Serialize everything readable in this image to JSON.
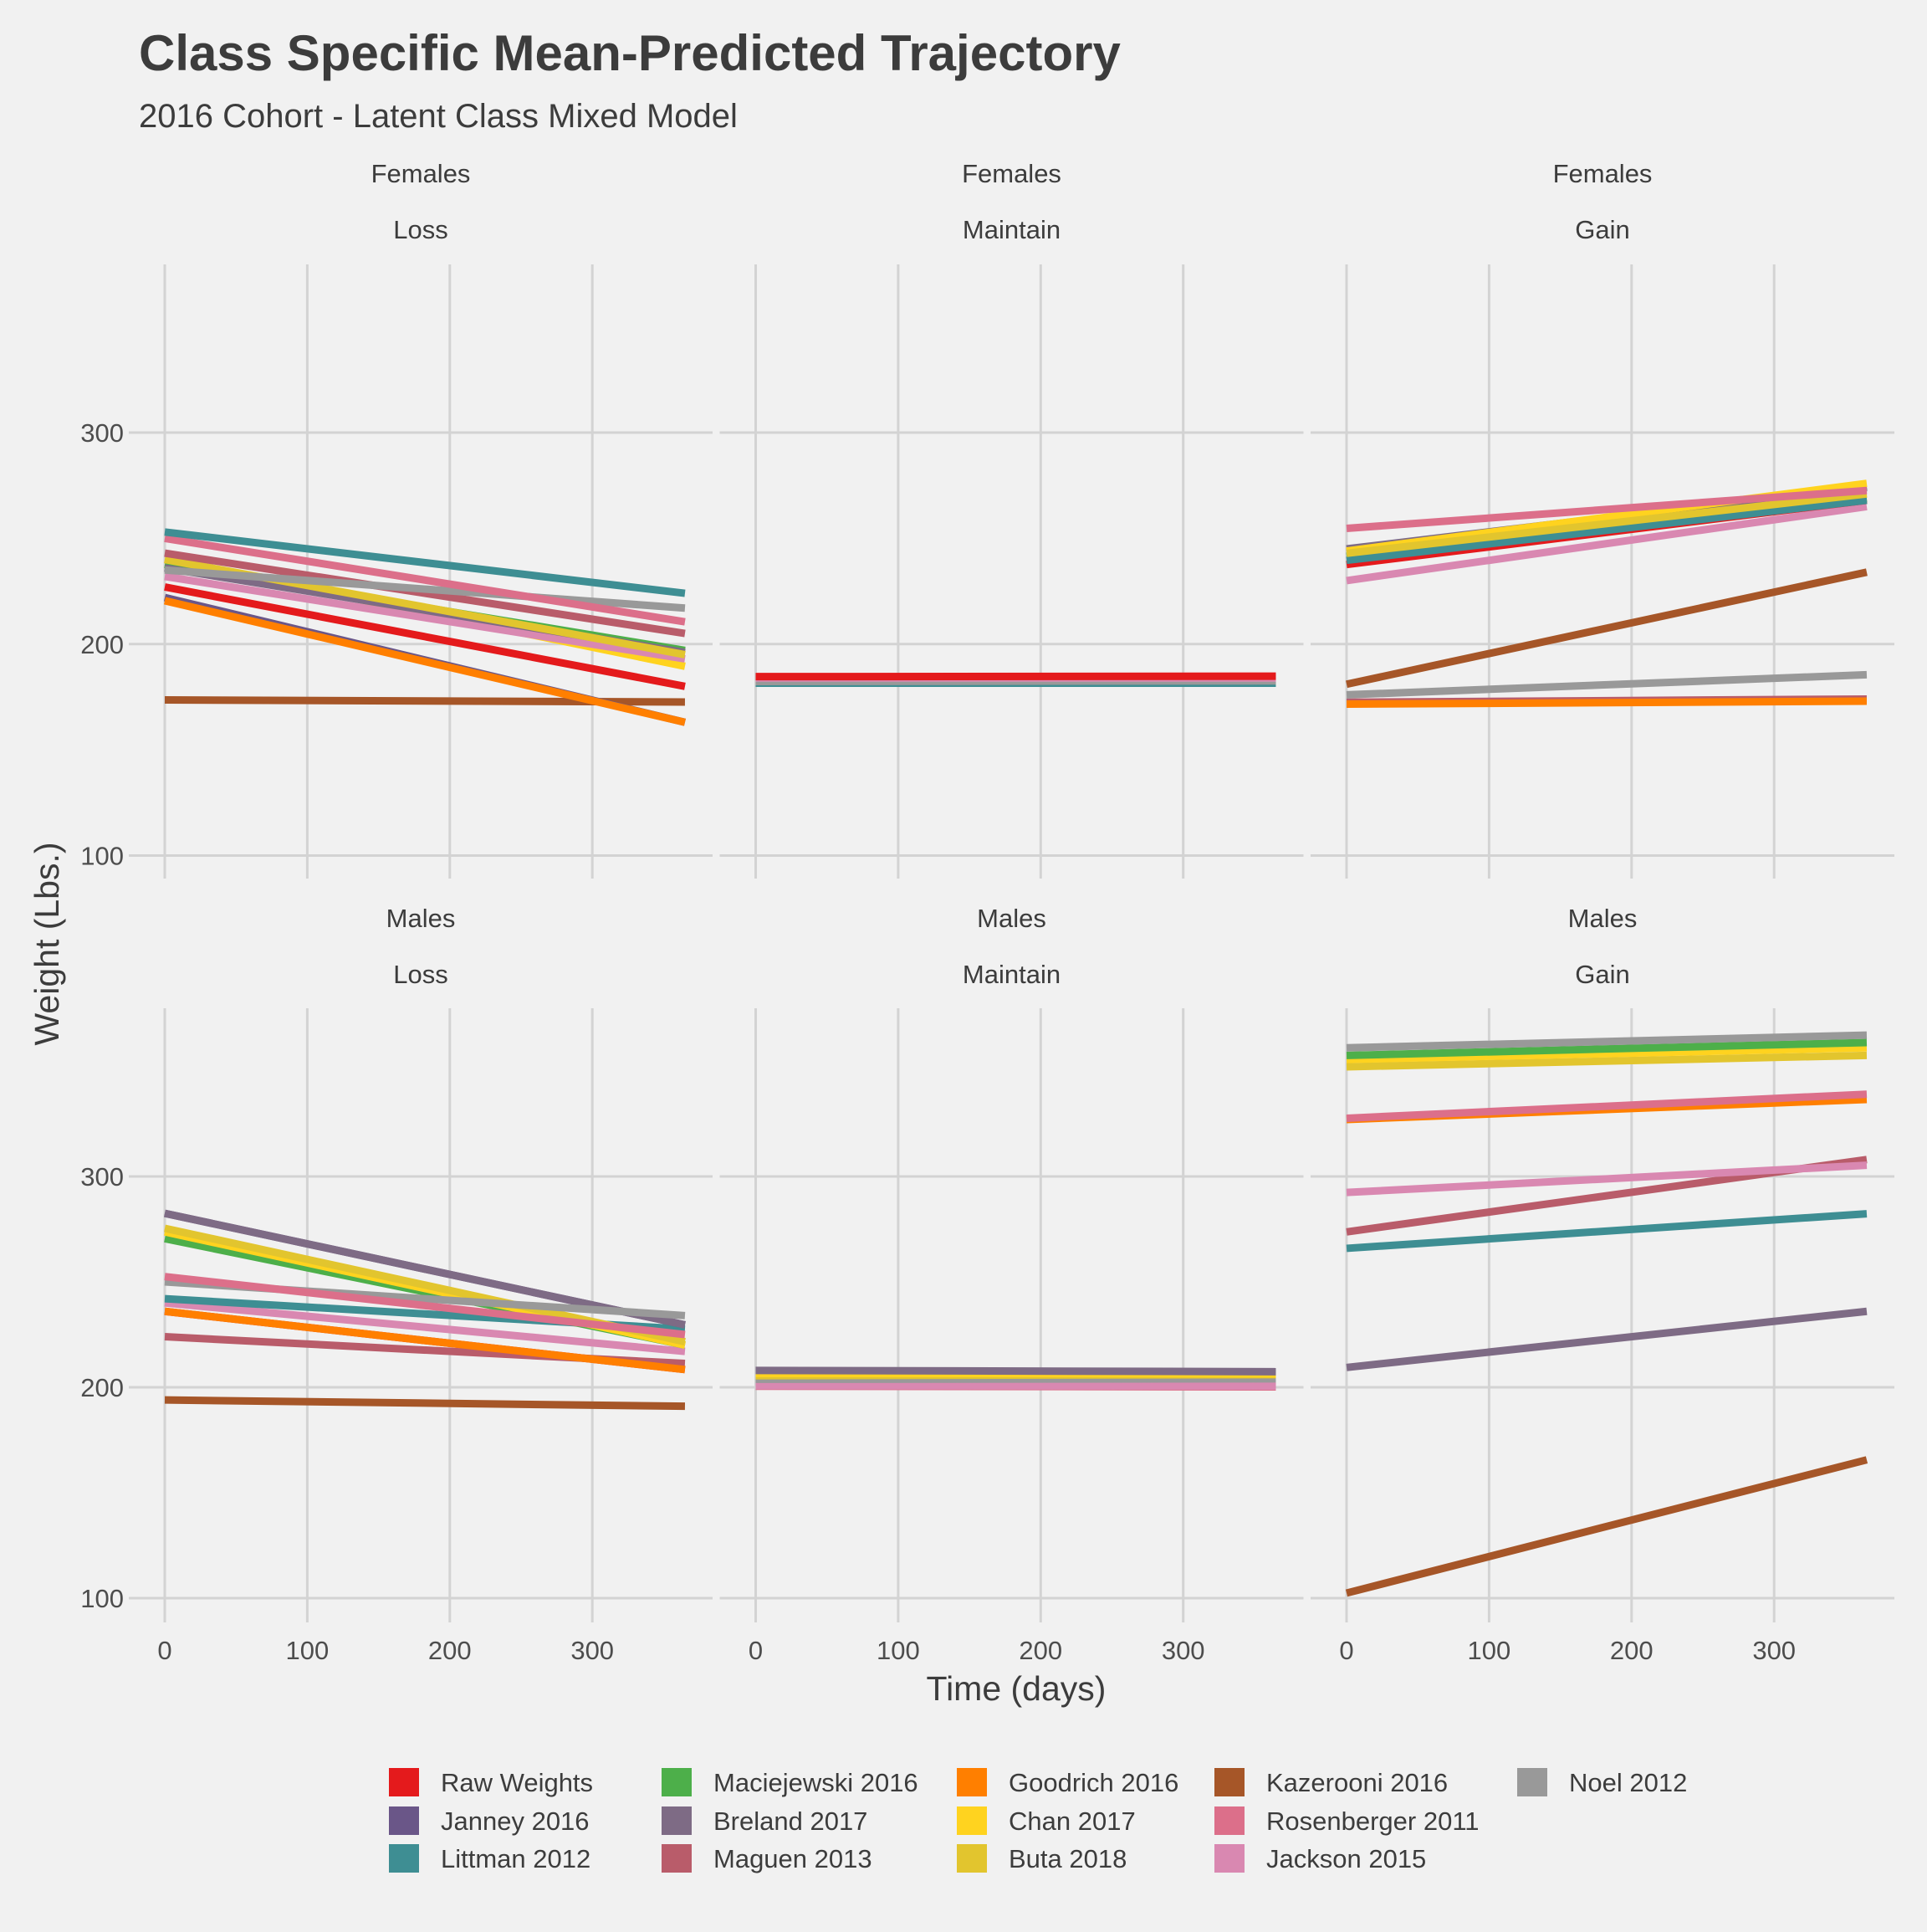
{
  "title": "Class Specific Mean-Predicted Trajectory",
  "subtitle": "2016 Cohort - Latent Class Mixed Model",
  "colors": {
    "Raw Weights": "#e41a1c",
    "Janney 2016": "#6a5688",
    "Littman 2012": "#3e8e93",
    "Maciejewski 2016": "#4daf4a",
    "Breland 2017": "#7e6b85",
    "Maguen 2013": "#b95c6a",
    "Goodrich 2016": "#ff7f00",
    "Chan 2017": "#ffd31f",
    "Buta 2018": "#e2c52e",
    "Kazerooni 2016": "#a65628",
    "Rosenberger 2011": "#dc6f8a",
    "Jackson 2015": "#d988b1",
    "Noel 2012": "#999999"
  },
  "chart_data": {
    "type": "line",
    "facet_layout": "2 rows x 3 columns",
    "xlabel": "Time (days)",
    "ylabel": "Weight (Lbs.)",
    "xlim": [
      0,
      365
    ],
    "ylim": [
      90,
      390
    ],
    "x_ticks": [
      "0",
      "100",
      "200",
      "300"
    ],
    "y_ticks": [
      "100",
      "200",
      "300"
    ],
    "grid": true,
    "legend_position": "bottom",
    "legend": [
      "Raw Weights",
      "Janney 2016",
      "Littman 2012",
      "Maciejewski 2016",
      "Breland 2017",
      "Maguen 2013",
      "Goodrich 2016",
      "Chan 2017",
      "Buta 2018",
      "Kazerooni 2016",
      "Rosenberger 2011",
      "Jackson 2015",
      "Noel 2012"
    ],
    "panels": [
      {
        "sex": "Females",
        "trajectory": "Loss",
        "series": [
          {
            "name": "Kazerooni 2016",
            "x": [
              0,
              365
            ],
            "y": [
              173.6,
              172.6
            ]
          },
          {
            "name": "Janney 2016",
            "x": [
              0,
              365
            ],
            "y": [
              222,
              163
            ]
          },
          {
            "name": "Goodrich 2016",
            "x": [
              0,
              365
            ],
            "y": [
              220.5,
              163
            ]
          },
          {
            "name": "Raw Weights",
            "x": [
              0,
              365
            ],
            "y": [
              227,
              180
            ]
          },
          {
            "name": "Chan 2017",
            "x": [
              0,
              365
            ],
            "y": [
              240,
              189.5
            ]
          },
          {
            "name": "Jackson 2015",
            "x": [
              0,
              365
            ],
            "y": [
              232,
              193
            ]
          },
          {
            "name": "Maciejewski 2016",
            "x": [
              0,
              365
            ],
            "y": [
              237.6,
              197
            ]
          },
          {
            "name": "Breland 2017",
            "x": [
              0,
              365
            ],
            "y": [
              236,
              196
            ]
          },
          {
            "name": "Buta 2018",
            "x": [
              0,
              365
            ],
            "y": [
              240,
              195
            ]
          },
          {
            "name": "Maguen 2013",
            "x": [
              0,
              365
            ],
            "y": [
              243,
              205
            ]
          },
          {
            "name": "Noel 2012",
            "x": [
              0,
              365
            ],
            "y": [
              235,
              217
            ]
          },
          {
            "name": "Rosenberger 2011",
            "x": [
              0,
              365
            ],
            "y": [
              250,
              210.5
            ]
          },
          {
            "name": "Littman 2012",
            "x": [
              0,
              365
            ],
            "y": [
              253,
              224
            ]
          }
        ]
      },
      {
        "sex": "Females",
        "trajectory": "Maintain",
        "series": [
          {
            "name": "Littman 2012",
            "x": [
              0,
              365
            ],
            "y": [
              181.5,
              181.5
            ]
          },
          {
            "name": "Noel 2012",
            "x": [
              0,
              365
            ],
            "y": [
              182.3,
              182.6
            ]
          },
          {
            "name": "Jackson 2015",
            "x": [
              0,
              365
            ],
            "y": [
              184,
              184
            ]
          },
          {
            "name": "Raw Weights",
            "x": [
              0,
              365
            ],
            "y": [
              184.6,
              184.8
            ]
          }
        ]
      },
      {
        "sex": "Females",
        "trajectory": "Gain",
        "series": [
          {
            "name": "Maguen 2013",
            "x": [
              0,
              365
            ],
            "y": [
              172.5,
              174
            ]
          },
          {
            "name": "Goodrich 2016",
            "x": [
              0,
              365
            ],
            "y": [
              171.6,
              173
            ]
          },
          {
            "name": "Noel 2012",
            "x": [
              0,
              365
            ],
            "y": [
              176,
              185.5
            ]
          },
          {
            "name": "Kazerooni 2016",
            "x": [
              0,
              365
            ],
            "y": [
              181,
              234
            ]
          },
          {
            "name": "Jackson 2015",
            "x": [
              0,
              365
            ],
            "y": [
              230,
              265
            ]
          },
          {
            "name": "Raw Weights",
            "x": [
              0,
              365
            ],
            "y": [
              237.6,
              268
            ]
          },
          {
            "name": "Maciejewski 2016",
            "x": [
              0,
              365
            ],
            "y": [
              241.5,
              269
            ]
          },
          {
            "name": "Littman 2012",
            "x": [
              0,
              365
            ],
            "y": [
              239.6,
              268
            ]
          },
          {
            "name": "Janney 2016",
            "x": [
              0,
              365
            ],
            "y": [
              244,
              274
            ]
          },
          {
            "name": "Breland 2017",
            "x": [
              0,
              365
            ],
            "y": [
              245,
              274.5
            ]
          },
          {
            "name": "Chan 2017",
            "x": [
              0,
              365
            ],
            "y": [
              244,
              276
            ]
          },
          {
            "name": "Buta 2018",
            "x": [
              0,
              365
            ],
            "y": [
              242.9,
              271
            ]
          },
          {
            "name": "Rosenberger 2011",
            "x": [
              0,
              365
            ],
            "y": [
              254.7,
              272.6
            ]
          }
        ]
      },
      {
        "sex": "Males",
        "trajectory": "Loss",
        "series": [
          {
            "name": "Kazerooni 2016",
            "x": [
              0,
              365
            ],
            "y": [
              194,
              191
            ]
          },
          {
            "name": "Raw Weights",
            "x": [
              0,
              365
            ],
            "y": [
              236,
              208.4
            ]
          },
          {
            "name": "Maguen 2013",
            "x": [
              0,
              365
            ],
            "y": [
              224,
              211.3
            ]
          },
          {
            "name": "Goodrich 2016",
            "x": [
              0,
              365
            ],
            "y": [
              236,
              208.4
            ]
          },
          {
            "name": "Jackson 2015",
            "x": [
              0,
              365
            ],
            "y": [
              240,
              217
            ]
          },
          {
            "name": "Littman 2012",
            "x": [
              0,
              365
            ],
            "y": [
              242,
              227.6
            ]
          },
          {
            "name": "Janney 2016",
            "x": [
              0,
              365
            ],
            "y": [
              282.5,
              229.6
            ]
          },
          {
            "name": "Breland 2017",
            "x": [
              0,
              365
            ],
            "y": [
              282.5,
              229.6
            ]
          },
          {
            "name": "Maciejewski 2016",
            "x": [
              0,
              365
            ],
            "y": [
              270.5,
              220
            ]
          },
          {
            "name": "Chan 2017",
            "x": [
              0,
              365
            ],
            "y": [
              273.7,
              220
            ]
          },
          {
            "name": "Buta 2018",
            "x": [
              0,
              365
            ],
            "y": [
              275.4,
              221.6
            ]
          },
          {
            "name": "Noel 2012",
            "x": [
              0,
              365
            ],
            "y": [
              250,
              234
            ]
          },
          {
            "name": "Rosenberger 2011",
            "x": [
              0,
              365
            ],
            "y": [
              252.5,
              225
            ]
          }
        ]
      },
      {
        "sex": "Males",
        "trajectory": "Maintain",
        "series": [
          {
            "name": "Rosenberger 2011",
            "x": [
              0,
              365
            ],
            "y": [
              200.5,
              200.2
            ]
          },
          {
            "name": "Jackson 2015",
            "x": [
              0,
              365
            ],
            "y": [
              200.8,
              200.6
            ]
          },
          {
            "name": "Noel 2012",
            "x": [
              0,
              365
            ],
            "y": [
              203.8,
              204
            ]
          },
          {
            "name": "Buta 2018",
            "x": [
              0,
              365
            ],
            "y": [
              205.5,
              206
            ]
          },
          {
            "name": "Chan 2017",
            "x": [
              0,
              365
            ],
            "y": [
              206.6,
              206.4
            ]
          },
          {
            "name": "Breland 2017",
            "x": [
              0,
              365
            ],
            "y": [
              208,
              207.4
            ]
          }
        ]
      },
      {
        "sex": "Males",
        "trajectory": "Gain",
        "series": [
          {
            "name": "Kazerooni 2016",
            "x": [
              0,
              365
            ],
            "y": [
              102.4,
              165.6
            ]
          },
          {
            "name": "Breland 2017",
            "x": [
              0,
              365
            ],
            "y": [
              209.4,
              236
            ]
          },
          {
            "name": "Littman 2012",
            "x": [
              0,
              365
            ],
            "y": [
              265.9,
              282.3
            ]
          },
          {
            "name": "Maguen 2013",
            "x": [
              0,
              365
            ],
            "y": [
              273.7,
              308
            ]
          },
          {
            "name": "Jackson 2015",
            "x": [
              0,
              365
            ],
            "y": [
              292.4,
              305.3
            ]
          },
          {
            "name": "Goodrich 2016",
            "x": [
              0,
              365
            ],
            "y": [
              327,
              336.5
            ]
          },
          {
            "name": "Rosenberger 2011",
            "x": [
              0,
              365
            ],
            "y": [
              327.6,
              339
            ]
          },
          {
            "name": "Buta 2018",
            "x": [
              0,
              365
            ],
            "y": [
              352,
              357.4
            ]
          },
          {
            "name": "Chan 2017",
            "x": [
              0,
              365
            ],
            "y": [
              355.5,
              361
            ]
          },
          {
            "name": "Maciejewski 2016",
            "x": [
              0,
              365
            ],
            "y": [
              357.4,
              363.5
            ]
          },
          {
            "name": "Noel 2012",
            "x": [
              0,
              365
            ],
            "y": [
              361,
              367
            ]
          }
        ]
      }
    ]
  }
}
